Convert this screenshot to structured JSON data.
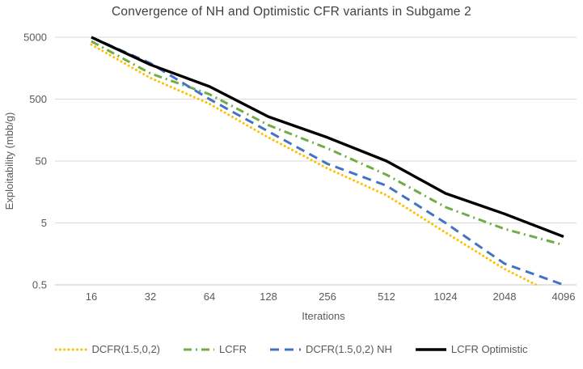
{
  "chart_data": {
    "type": "line",
    "title": "Convergence of NH and Optimistic CFR variants in Subgame 2",
    "xlabel": "Iterations",
    "ylabel": "Exploitability (mbb/g)",
    "x_scale": "log2",
    "y_scale": "log10",
    "xlim": [
      16,
      4096
    ],
    "ylim": [
      0.5,
      5000
    ],
    "x_ticks": [
      16,
      32,
      64,
      128,
      256,
      512,
      1024,
      2048,
      4096
    ],
    "y_ticks": [
      5000,
      500,
      50,
      5,
      0.5
    ],
    "grid": "horizontal",
    "legend_position": "bottom",
    "x": [
      16,
      32,
      64,
      128,
      256,
      512,
      1024,
      2048,
      4096
    ],
    "series": [
      {
        "name": "DCFR(1.5,0,2)",
        "color": "#FFC000",
        "style": "dotted",
        "values": [
          3800,
          1100,
          420,
          120,
          38,
          14,
          3.5,
          0.9,
          0.3
        ]
      },
      {
        "name": "LCFR",
        "color": "#70AD47",
        "style": "dashdot",
        "values": [
          4300,
          1300,
          600,
          190,
          80,
          30,
          9,
          4,
          2.2
        ]
      },
      {
        "name": "DCFR(1.5,0,2) NH",
        "color": "#4472C4",
        "style": "dashed",
        "values": [
          5000,
          1900,
          500,
          150,
          45,
          20,
          5,
          1.1,
          0.5
        ]
      },
      {
        "name": "LCFR Optimistic",
        "color": "#000000",
        "style": "solid",
        "values": [
          5000,
          1800,
          800,
          260,
          120,
          50,
          15,
          7,
          3
        ]
      }
    ],
    "colors": {
      "gridline": "#D9D9D9",
      "axis_line": "#C6C6C6",
      "tick_label": "#595959",
      "axis_title": "#595959",
      "chart_title": "#404040",
      "background": "#FFFFFF"
    }
  }
}
